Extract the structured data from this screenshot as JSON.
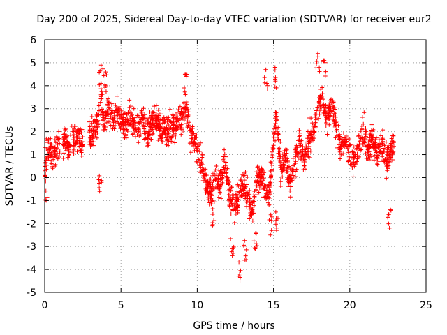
{
  "chart_data": {
    "type": "scatter",
    "title": "Day 200 of 2025, Sidereal Day-to-day VTEC variation (SDTVAR) for receiver eur2",
    "xlabel": "GPS time / hours",
    "ylabel": "SDTVAR / TECUs",
    "xlim": [
      0,
      25
    ],
    "ylim": [
      -5,
      6
    ],
    "xticks": [
      0,
      5,
      10,
      15,
      20,
      25
    ],
    "yticks": [
      -5,
      -4,
      -3,
      -2,
      -1,
      0,
      1,
      2,
      3,
      4,
      5,
      6
    ],
    "grid": true,
    "marker": "+",
    "marker_color": "#ff0000",
    "series": [
      {
        "name": "SDTVAR",
        "trend": {
          "x": [
            0.0,
            0.3,
            0.6,
            0.9,
            1.3,
            1.6,
            2.0,
            2.4,
            2.8,
            3.2,
            3.5,
            3.7,
            3.9,
            4.2,
            4.5,
            4.8,
            5.2,
            5.6,
            6.0,
            6.4,
            6.8,
            7.2,
            7.6,
            8.0,
            8.5,
            9.0,
            9.3,
            9.6,
            10.0,
            10.3,
            10.6,
            10.9,
            11.2,
            11.5,
            11.8,
            12.1,
            12.4,
            12.7,
            13.0,
            13.3,
            13.6,
            13.9,
            14.2,
            14.5,
            14.8,
            15.0,
            15.2,
            15.5,
            15.8,
            16.1,
            16.4,
            16.7,
            17.0,
            17.3,
            17.6,
            17.9,
            18.2,
            18.5,
            18.8,
            19.1,
            19.4,
            19.7,
            20.0,
            20.3,
            20.6,
            20.9,
            21.2,
            21.5,
            21.8,
            22.1,
            22.4,
            22.7,
            22.9
          ],
          "y": [
            0.5,
            1.3,
            0.8,
            1.5,
            1.6,
            1.2,
            1.8,
            1.6,
            1.7,
            2.0,
            2.5,
            3.5,
            2.2,
            3.0,
            2.5,
            2.8,
            2.3,
            2.6,
            2.2,
            2.5,
            2.0,
            2.6,
            2.3,
            2.0,
            2.2,
            2.6,
            3.0,
            1.8,
            1.2,
            0.6,
            -0.2,
            -0.8,
            0.2,
            -0.4,
            0.8,
            -0.6,
            -1.4,
            -0.9,
            -0.3,
            -0.8,
            -1.6,
            -0.2,
            0.2,
            -0.8,
            -0.4,
            1.8,
            2.6,
            0.3,
            0.9,
            -0.3,
            0.6,
            1.4,
            0.8,
            1.6,
            2.0,
            3.0,
            3.5,
            2.6,
            3.2,
            2.3,
            1.2,
            1.6,
            1.0,
            0.8,
            1.4,
            2.0,
            1.2,
            1.8,
            0.9,
            1.6,
            0.6,
            1.2,
            1.4
          ]
        },
        "extremes": [
          {
            "x": 3.7,
            "y": 4.9
          },
          {
            "x": 4.0,
            "y": 4.6
          },
          {
            "x": 9.2,
            "y": 4.5
          },
          {
            "x": 14.5,
            "y": 4.7
          },
          {
            "x": 15.1,
            "y": 4.8
          },
          {
            "x": 17.9,
            "y": 5.4
          },
          {
            "x": 18.3,
            "y": 5.1
          },
          {
            "x": 0.1,
            "y": -1.0
          },
          {
            "x": 3.6,
            "y": -0.6
          },
          {
            "x": 12.3,
            "y": -3.4
          },
          {
            "x": 12.8,
            "y": -4.5
          },
          {
            "x": 13.1,
            "y": -3.6
          },
          {
            "x": 14.8,
            "y": -2.5
          },
          {
            "x": 15.2,
            "y": -2.3
          },
          {
            "x": 22.6,
            "y": -2.2
          },
          {
            "x": 11.0,
            "y": -2.1
          },
          {
            "x": 13.8,
            "y": -3.1
          }
        ],
        "spread": 0.9,
        "density_per_hour": 90,
        "coverage": [
          [
            0.0,
            1.0
          ],
          [
            1.2,
            2.5
          ],
          [
            2.9,
            22.9
          ]
        ]
      }
    ]
  }
}
